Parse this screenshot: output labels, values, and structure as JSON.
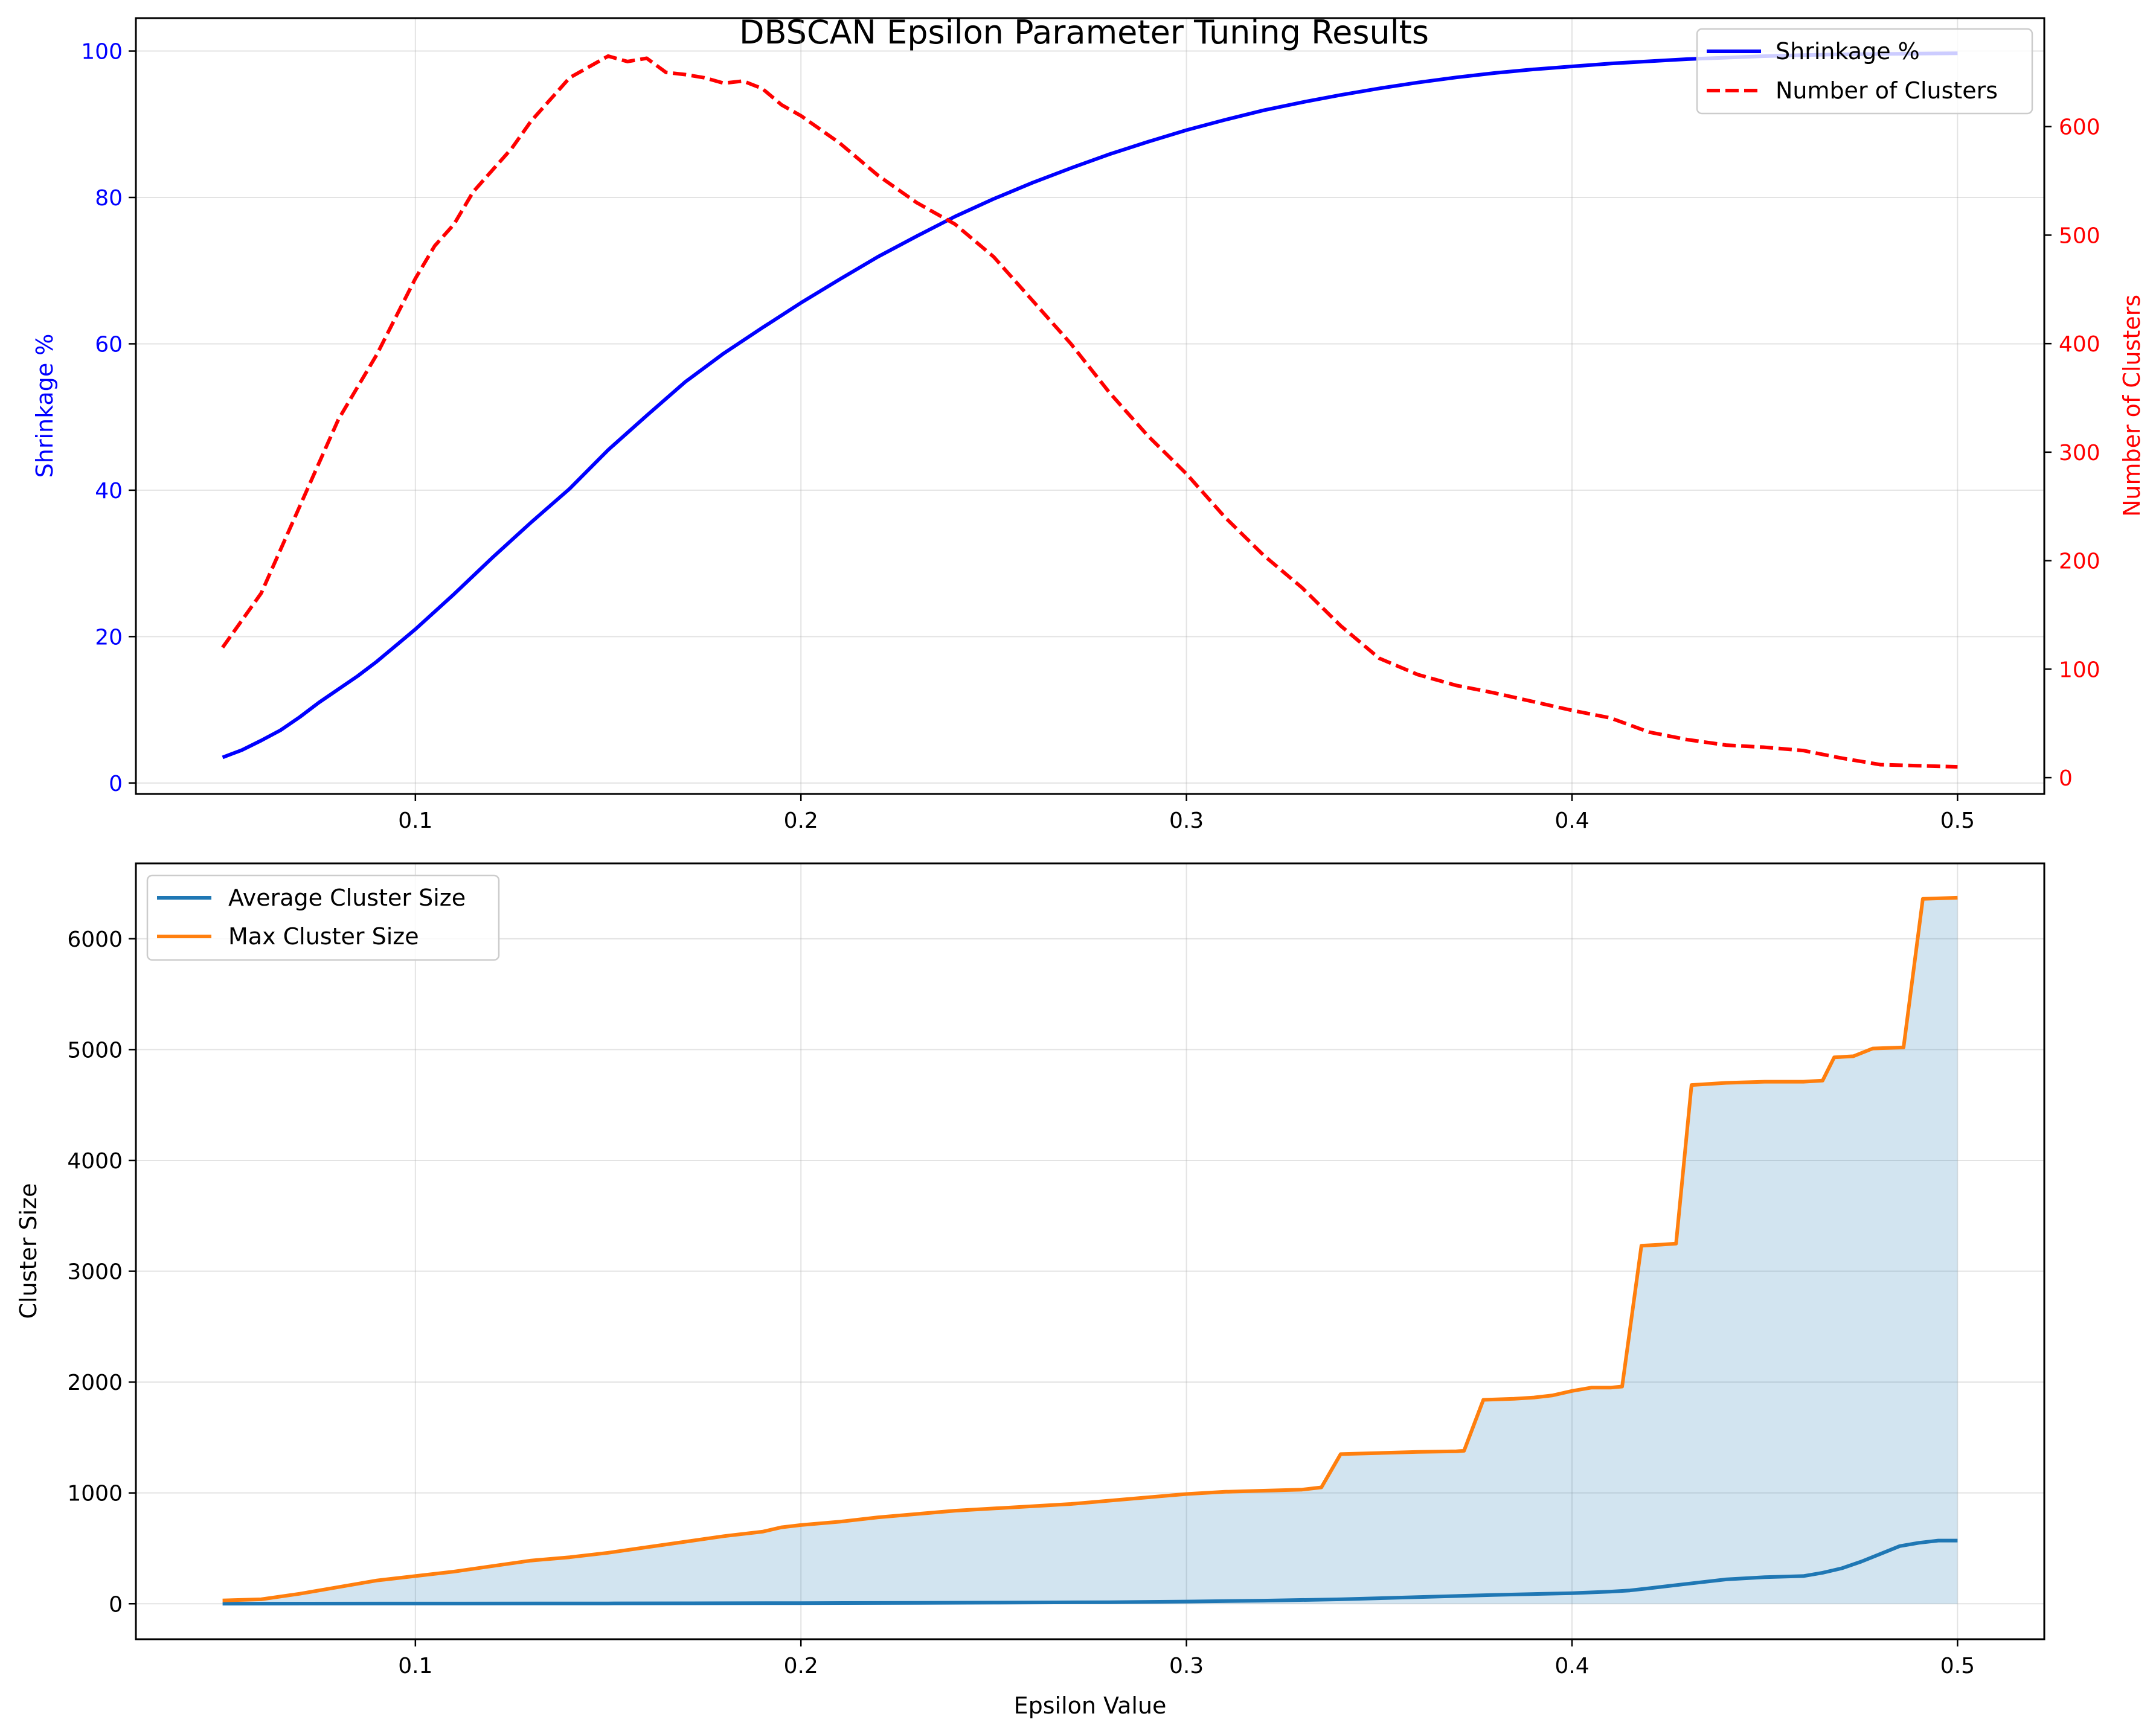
{
  "figure_title": "DBSCAN Epsilon Parameter Tuning Results",
  "colors": {
    "shrinkage": "#0000ff",
    "clusters": "#ff0000",
    "avg_size": "#1f77b4",
    "max_size": "#ff7f0e",
    "fill": "#1f77b4",
    "grid": "#b0b0b0"
  },
  "chart_data": [
    {
      "type": "line",
      "title": "DBSCAN Epsilon Parameter Tuning Results",
      "xlabel": "",
      "ylabel": "Shrinkage %",
      "y2label": "Number of Clusters",
      "xlim": [
        0.0275,
        0.5225
      ],
      "ylim": [
        -1.5,
        104.5
      ],
      "y2lim": [
        -15,
        700
      ],
      "xticks": [
        0.1,
        0.2,
        0.3,
        0.4,
        0.5
      ],
      "xtick_labels": [
        "0.1",
        "0.2",
        "0.3",
        "0.4",
        "0.5"
      ],
      "yticks": [
        0,
        20,
        40,
        60,
        80,
        100
      ],
      "ytick_labels": [
        "0",
        "20",
        "40",
        "60",
        "80",
        "100"
      ],
      "y2ticks": [
        0,
        100,
        200,
        300,
        400,
        500,
        600
      ],
      "y2tick_labels": [
        "0",
        "100",
        "200",
        "300",
        "400",
        "500",
        "600"
      ],
      "grid": true,
      "legend_position": "upper-right",
      "series": [
        {
          "name": "Shrinkage %",
          "axis": "left",
          "style": "solid",
          "x": [
            0.05,
            0.055,
            0.06,
            0.065,
            0.07,
            0.075,
            0.08,
            0.085,
            0.09,
            0.095,
            0.1,
            0.11,
            0.12,
            0.13,
            0.14,
            0.15,
            0.16,
            0.17,
            0.18,
            0.19,
            0.2,
            0.21,
            0.22,
            0.23,
            0.24,
            0.25,
            0.26,
            0.27,
            0.28,
            0.29,
            0.3,
            0.31,
            0.32,
            0.33,
            0.34,
            0.35,
            0.36,
            0.37,
            0.38,
            0.39,
            0.4,
            0.41,
            0.42,
            0.43,
            0.44,
            0.45,
            0.46,
            0.47,
            0.48,
            0.49,
            0.5
          ],
          "values": [
            3.5,
            4.5,
            5.8,
            7.2,
            9.0,
            11.0,
            12.8,
            14.6,
            16.6,
            18.8,
            21.0,
            25.8,
            30.8,
            35.6,
            40.2,
            45.5,
            50.2,
            54.8,
            58.7,
            62.2,
            65.6,
            68.8,
            71.9,
            74.7,
            77.4,
            79.8,
            82.0,
            84.0,
            85.9,
            87.6,
            89.2,
            90.6,
            91.9,
            93.0,
            94.0,
            94.9,
            95.7,
            96.4,
            97.0,
            97.5,
            97.9,
            98.3,
            98.6,
            98.9,
            99.1,
            99.3,
            99.45,
            99.55,
            99.6,
            99.65,
            99.7
          ]
        },
        {
          "name": "Number of Clusters",
          "axis": "right",
          "style": "dashed",
          "x": [
            0.05,
            0.055,
            0.06,
            0.065,
            0.07,
            0.075,
            0.08,
            0.085,
            0.09,
            0.095,
            0.1,
            0.105,
            0.11,
            0.115,
            0.12,
            0.125,
            0.13,
            0.135,
            0.14,
            0.145,
            0.15,
            0.155,
            0.16,
            0.165,
            0.17,
            0.175,
            0.18,
            0.185,
            0.19,
            0.195,
            0.2,
            0.21,
            0.22,
            0.23,
            0.24,
            0.25,
            0.26,
            0.27,
            0.28,
            0.29,
            0.3,
            0.31,
            0.32,
            0.33,
            0.34,
            0.35,
            0.36,
            0.37,
            0.38,
            0.39,
            0.4,
            0.41,
            0.42,
            0.43,
            0.44,
            0.45,
            0.46,
            0.47,
            0.48,
            0.49,
            0.5
          ],
          "values": [
            120,
            145,
            170,
            210,
            250,
            290,
            330,
            360,
            390,
            425,
            460,
            490,
            510,
            540,
            560,
            580,
            605,
            625,
            645,
            655,
            665,
            660,
            663,
            650,
            648,
            645,
            640,
            642,
            635,
            620,
            610,
            585,
            555,
            530,
            510,
            480,
            440,
            400,
            355,
            315,
            280,
            240,
            205,
            175,
            140,
            110,
            95,
            85,
            78,
            70,
            62,
            55,
            42,
            35,
            30,
            28,
            25,
            18,
            12,
            11,
            10
          ]
        }
      ]
    },
    {
      "type": "area",
      "title": "",
      "xlabel": "Epsilon Value",
      "ylabel": "Cluster Size",
      "xlim": [
        0.0275,
        0.5225
      ],
      "ylim": [
        -320,
        6680
      ],
      "xticks": [
        0.1,
        0.2,
        0.3,
        0.4,
        0.5
      ],
      "xtick_labels": [
        "0.1",
        "0.2",
        "0.3",
        "0.4",
        "0.5"
      ],
      "yticks": [
        0,
        1000,
        2000,
        3000,
        4000,
        5000,
        6000
      ],
      "ytick_labels": [
        "0",
        "1000",
        "2000",
        "3000",
        "4000",
        "5000",
        "6000"
      ],
      "grid": true,
      "legend_position": "upper-left",
      "series": [
        {
          "name": "Average Cluster Size",
          "x": [
            0.05,
            0.1,
            0.15,
            0.2,
            0.25,
            0.28,
            0.3,
            0.32,
            0.34,
            0.36,
            0.38,
            0.4,
            0.41,
            0.415,
            0.42,
            0.425,
            0.43,
            0.44,
            0.45,
            0.46,
            0.465,
            0.47,
            0.475,
            0.48,
            0.485,
            0.49,
            0.495,
            0.5
          ],
          "values": [
            1,
            2,
            3,
            6,
            10,
            14,
            20,
            28,
            40,
            60,
            80,
            95,
            110,
            120,
            140,
            160,
            180,
            220,
            240,
            250,
            280,
            320,
            380,
            450,
            520,
            550,
            570,
            570
          ]
        },
        {
          "name": "Max Cluster Size",
          "x": [
            0.05,
            0.06,
            0.07,
            0.08,
            0.09,
            0.1,
            0.11,
            0.12,
            0.13,
            0.14,
            0.15,
            0.16,
            0.17,
            0.18,
            0.19,
            0.195,
            0.2,
            0.21,
            0.22,
            0.23,
            0.24,
            0.25,
            0.26,
            0.27,
            0.28,
            0.29,
            0.3,
            0.31,
            0.32,
            0.33,
            0.335,
            0.34,
            0.35,
            0.36,
            0.37,
            0.372,
            0.377,
            0.385,
            0.39,
            0.395,
            0.4,
            0.405,
            0.41,
            0.413,
            0.418,
            0.423,
            0.427,
            0.431,
            0.44,
            0.45,
            0.46,
            0.465,
            0.468,
            0.473,
            0.478,
            0.486,
            0.491,
            0.5
          ],
          "values": [
            30,
            40,
            90,
            150,
            210,
            250,
            290,
            340,
            390,
            420,
            460,
            510,
            560,
            610,
            650,
            690,
            710,
            740,
            780,
            810,
            840,
            860,
            880,
            900,
            930,
            960,
            990,
            1010,
            1020,
            1030,
            1050,
            1350,
            1360,
            1370,
            1375,
            1380,
            1840,
            1850,
            1860,
            1880,
            1920,
            1950,
            1950,
            1960,
            3230,
            3240,
            3250,
            4680,
            4700,
            4710,
            4710,
            4720,
            4930,
            4940,
            5010,
            5020,
            6360,
            6370
          ]
        }
      ]
    }
  ]
}
